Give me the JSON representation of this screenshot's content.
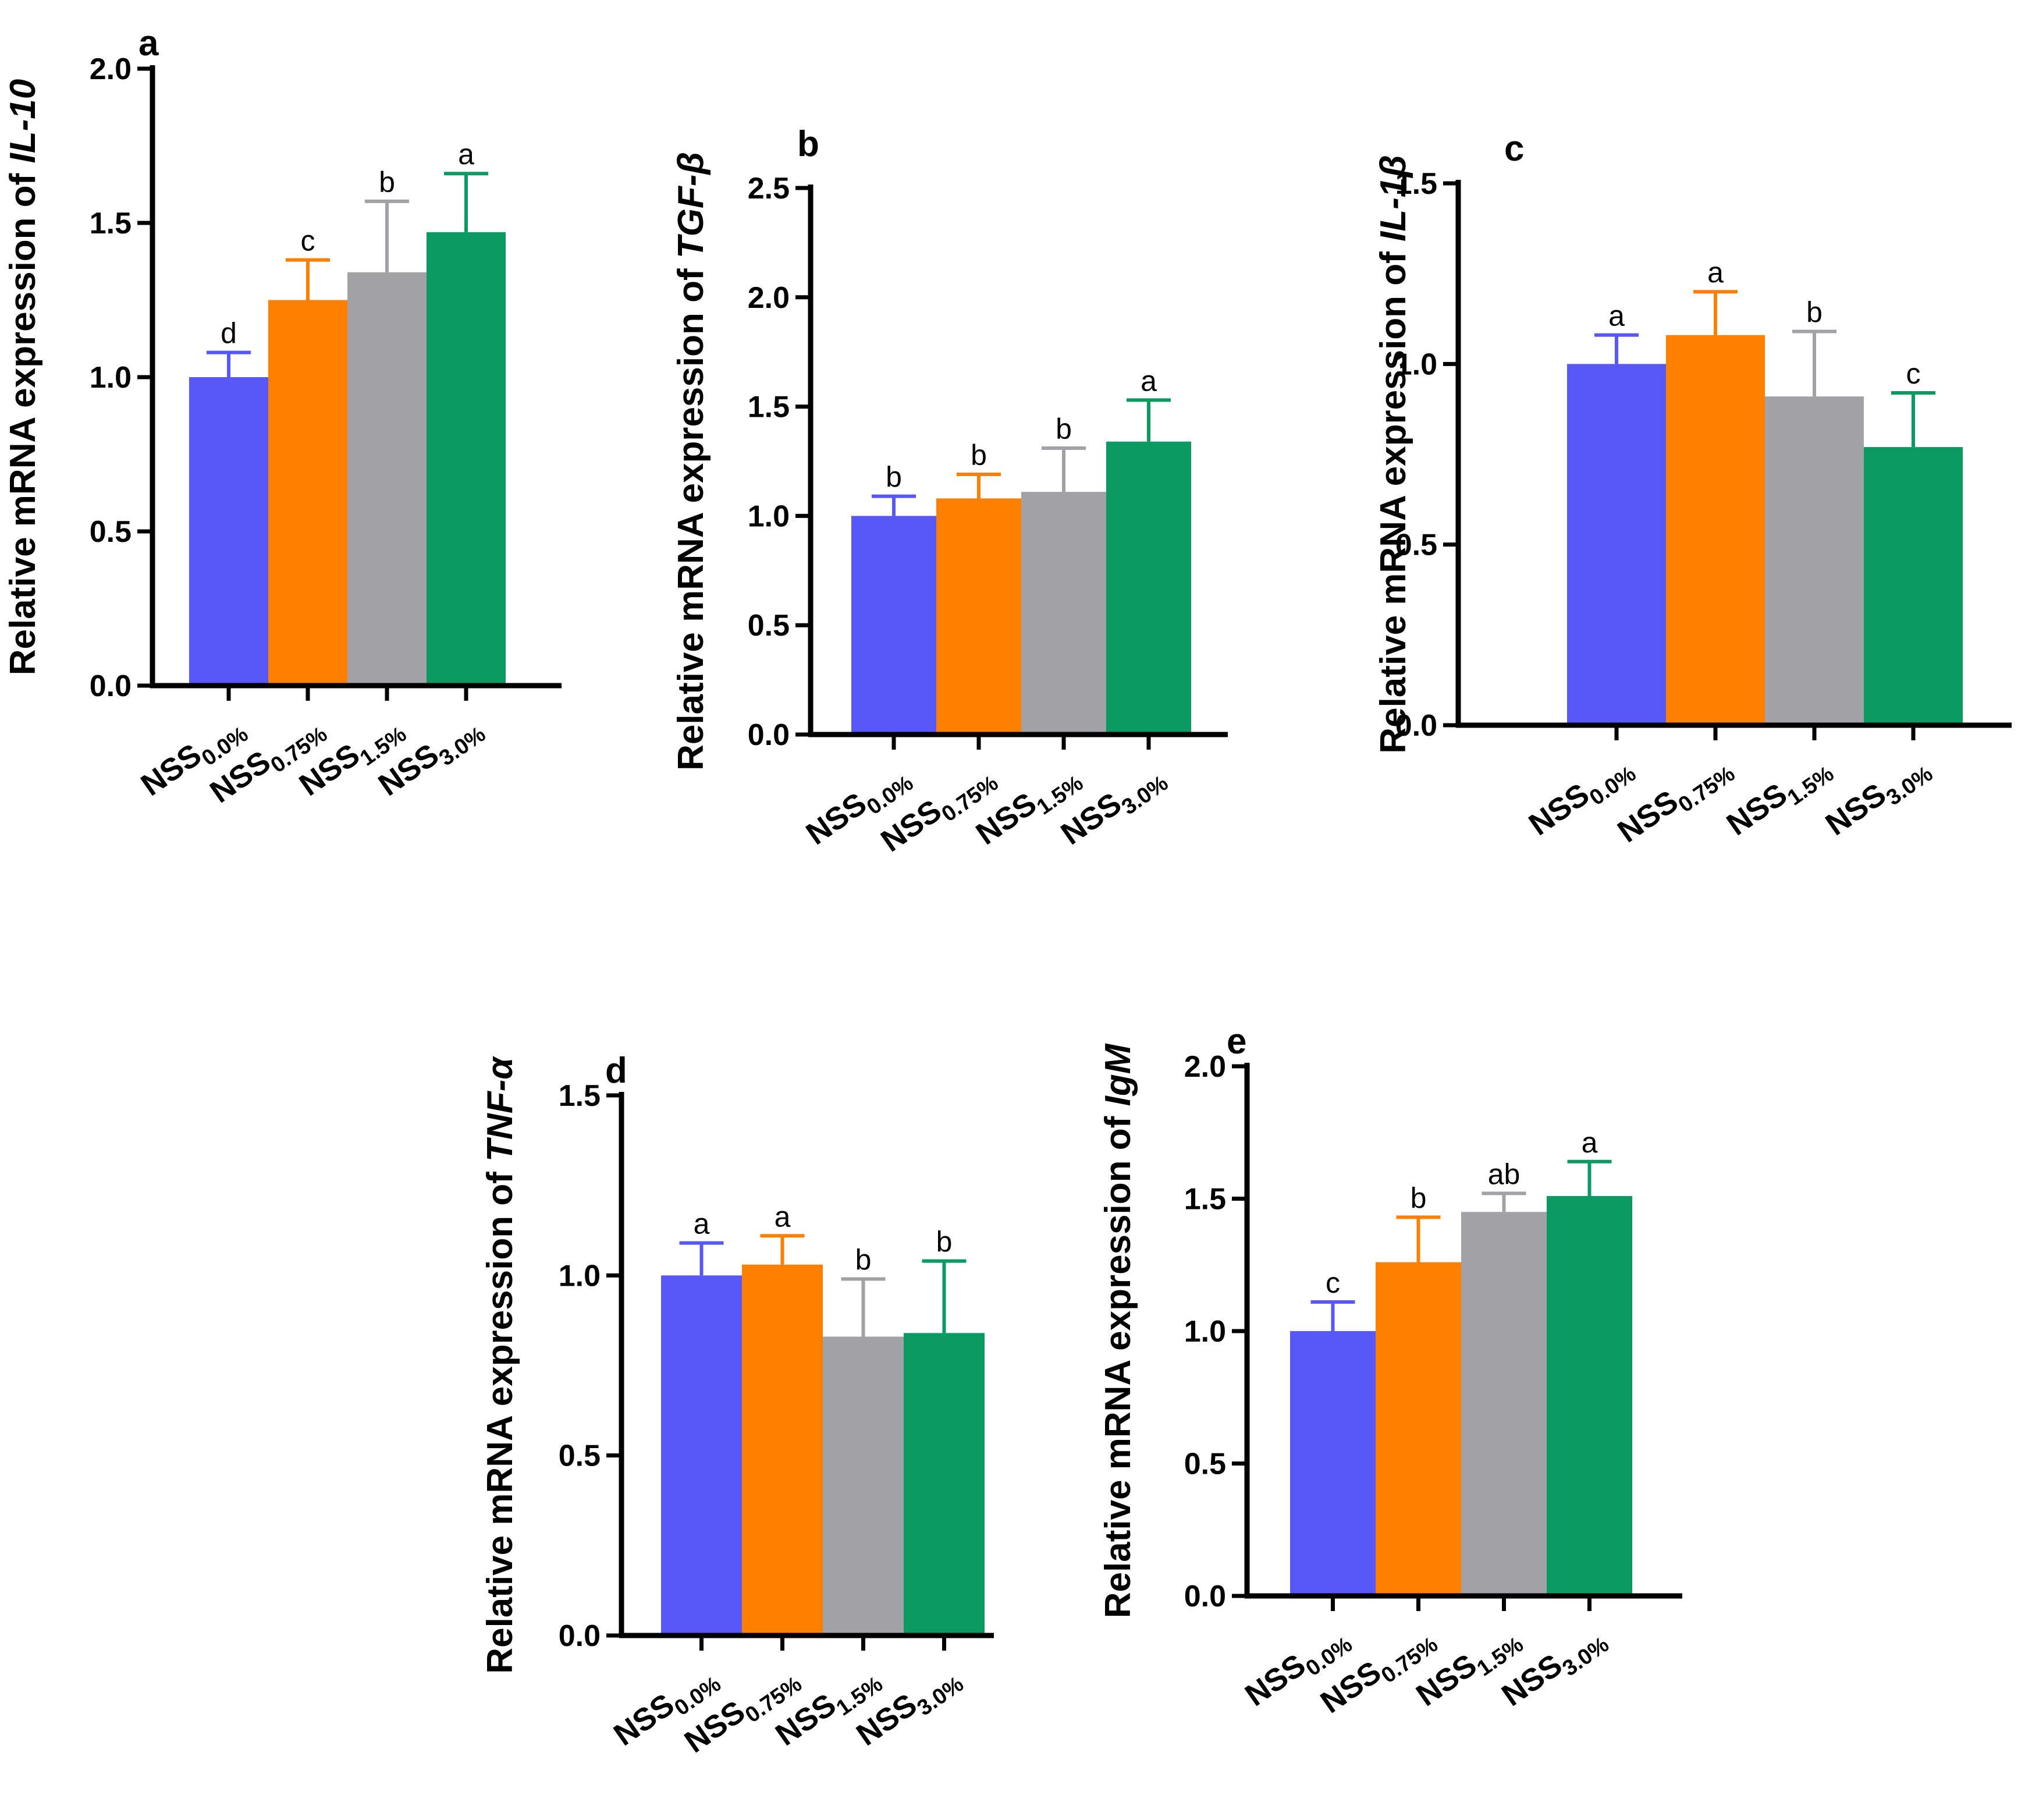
{
  "figure": {
    "colors": {
      "NSS0.0%": "#5858F8",
      "NSS0.75%": "#FF7F00",
      "NSS1.5%": "#A1A1A6",
      "NSS3.0%": "#0B9A61"
    },
    "category_labels": [
      {
        "base": "NSS",
        "sub": "0.0%"
      },
      {
        "base": "NSS",
        "sub": "0.75%"
      },
      {
        "base": "NSS",
        "sub": "1.5%"
      },
      {
        "base": "NSS",
        "sub": "3.0%"
      }
    ],
    "ylabel_prefix": "Relative mRNA expression of"
  },
  "chart_data": [
    {
      "type": "bar",
      "panel": "a",
      "gene": "IL-10",
      "categories": [
        "NSS0.0%",
        "NSS0.75%",
        "NSS1.5%",
        "NSS3.0%"
      ],
      "values": [
        1.0,
        1.25,
        1.34,
        1.47
      ],
      "errors": [
        0.08,
        0.13,
        0.23,
        0.19
      ],
      "significance": [
        "d",
        "c",
        "b",
        "a"
      ],
      "ylim": [
        0,
        2.0
      ],
      "yticks": [
        "0.0",
        "0.5",
        "1.0",
        "1.5",
        "2.0"
      ],
      "ylabel": "Relative mRNA expression of IL-10"
    },
    {
      "type": "bar",
      "panel": "b",
      "gene": "TGF-β",
      "categories": [
        "NSS0.0%",
        "NSS0.75%",
        "NSS1.5%",
        "NSS3.0%"
      ],
      "values": [
        1.0,
        1.08,
        1.11,
        1.34
      ],
      "errors": [
        0.09,
        0.11,
        0.2,
        0.19
      ],
      "significance": [
        "b",
        "b",
        "b",
        "a"
      ],
      "ylim": [
        0,
        2.5
      ],
      "yticks": [
        "0.0",
        "0.5",
        "1.0",
        "1.5",
        "2.0",
        "2.5"
      ],
      "ylabel": "Relative mRNA expression of TGF-β"
    },
    {
      "type": "bar",
      "panel": "c",
      "gene": "IL-1β",
      "categories": [
        "NSS0.0%",
        "NSS0.75%",
        "NSS1.5%",
        "NSS3.0%"
      ],
      "values": [
        1.0,
        1.08,
        0.91,
        0.77
      ],
      "errors": [
        0.08,
        0.12,
        0.18,
        0.15
      ],
      "significance": [
        "a",
        "a",
        "b",
        "c"
      ],
      "ylim": [
        0,
        1.5
      ],
      "yticks": [
        "0.0",
        "0.5",
        "1.0",
        "1.5"
      ],
      "ylabel": "Relative mRNA expression of IL-1β"
    },
    {
      "type": "bar",
      "panel": "d",
      "gene": "TNF-α",
      "categories": [
        "NSS0.0%",
        "NSS0.75%",
        "NSS1.5%",
        "NSS3.0%"
      ],
      "values": [
        1.0,
        1.03,
        0.83,
        0.84
      ],
      "errors": [
        0.09,
        0.08,
        0.16,
        0.2
      ],
      "significance": [
        "a",
        "a",
        "b",
        "b"
      ],
      "ylim": [
        0,
        1.5
      ],
      "yticks": [
        "0.0",
        "0.5",
        "1.0",
        "1.5"
      ],
      "ylabel": "Relative mRNA expression of TNF-α"
    },
    {
      "type": "bar",
      "panel": "e",
      "gene": "IgM",
      "categories": [
        "NSS0.0%",
        "NSS0.75%",
        "NSS1.5%",
        "NSS3.0%"
      ],
      "values": [
        1.0,
        1.26,
        1.45,
        1.51
      ],
      "errors": [
        0.11,
        0.17,
        0.07,
        0.13
      ],
      "significance": [
        "c",
        "b",
        "ab",
        "a"
      ],
      "ylim": [
        0,
        2.0
      ],
      "yticks": [
        "0.0",
        "0.5",
        "1.0",
        "1.5",
        "2.0"
      ],
      "ylabel": "Relative mRNA expression of IgM"
    }
  ]
}
